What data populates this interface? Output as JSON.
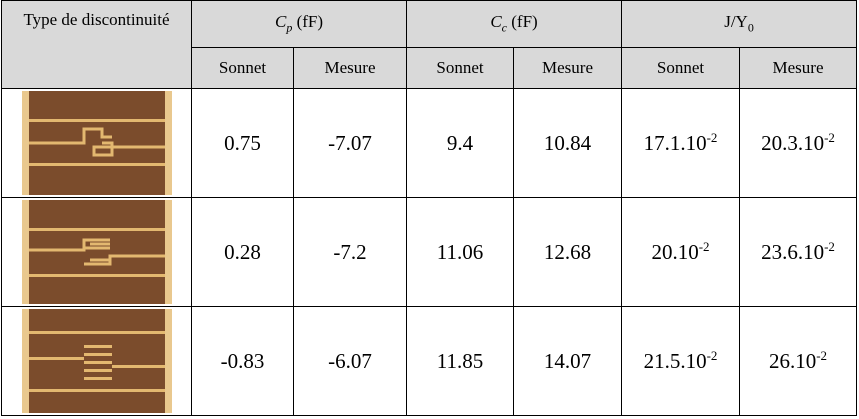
{
  "table": {
    "header": {
      "first": "Type de discontinuité",
      "groups": [
        {
          "symbol": "C",
          "sub": "p",
          "unit": "(fF)"
        },
        {
          "symbol": "C",
          "sub": "c",
          "unit": "(fF)"
        },
        {
          "symbol": "J/Y",
          "sub": "0"
        }
      ],
      "subheaders": [
        "Sonnet",
        "Mesure",
        "Sonnet",
        "Mesure",
        "Sonnet",
        "Mesure"
      ]
    },
    "rows": [
      [
        0.75,
        -7.07,
        9.4,
        10.84,
        {
          "base": "17.1.10",
          "exp": "-2"
        },
        {
          "base": "20.3.10",
          "exp": "-2"
        }
      ],
      [
        0.28,
        -7.2,
        11.06,
        12.68,
        {
          "base": "20.10",
          "exp": "-2"
        },
        {
          "base": "23.6.10",
          "exp": "-2"
        }
      ],
      [
        -0.83,
        -6.07,
        11.85,
        14.07,
        {
          "base": "21.5.10",
          "exp": "-2"
        },
        {
          "base": "26.10",
          "exp": "-2"
        }
      ]
    ]
  }
}
